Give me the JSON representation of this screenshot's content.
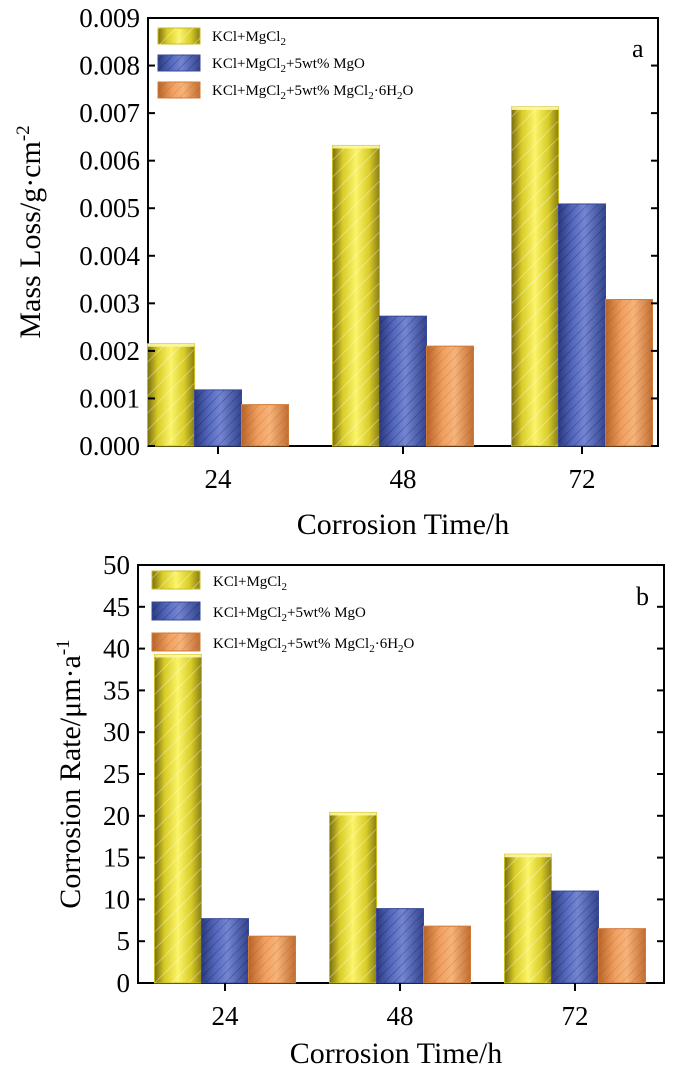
{
  "chart_data": [
    {
      "type": "bar",
      "panel_label": "a",
      "categories": [
        "24",
        "48",
        "72"
      ],
      "series": [
        {
          "name": "KCl+MgCl2",
          "values": [
            0.00215,
            0.00632,
            0.00713
          ],
          "color": "#e6da2e"
        },
        {
          "name": "KCl+MgCl2+5wt% MgO",
          "values": [
            0.00118,
            0.00273,
            0.00509
          ],
          "color": "#5b6fc0"
        },
        {
          "name": "KCl+MgCl2+5wt% MgCl2·6H2O",
          "values": [
            0.00087,
            0.0021,
            0.00308
          ],
          "color": "#f0a060"
        }
      ],
      "legend": {
        "placement": "top-left",
        "entries": [
          {
            "base": "KCl+MgCl",
            "sub": "2",
            "rest": ""
          },
          {
            "base": "KCl+MgCl",
            "sub": "2",
            "rest": "+5wt% MgO"
          },
          {
            "base": "KCl+MgCl",
            "sub": "2",
            "rest": "+5wt% MgCl",
            "sub2": "2",
            "rest2": "·6H",
            "sub3": "2",
            "rest3": "O"
          }
        ]
      },
      "xlabel": "Corrosion Time/h",
      "ylabel": "Mass Loss/g·cm",
      "ylabel_sup": "-2",
      "ylim": [
        0,
        0.009
      ],
      "yticks": [
        "0.000",
        "0.001",
        "0.002",
        "0.003",
        "0.004",
        "0.005",
        "0.006",
        "0.007",
        "0.008",
        "0.009"
      ],
      "grid": false
    },
    {
      "type": "bar",
      "panel_label": "b",
      "categories": [
        "24",
        "48",
        "72"
      ],
      "series": [
        {
          "name": "KCl+MgCl2",
          "values": [
            39.3,
            20.4,
            15.4
          ],
          "color": "#e6da2e"
        },
        {
          "name": "KCl+MgCl2+5wt% MgO",
          "values": [
            7.7,
            8.9,
            11.0
          ],
          "color": "#5b6fc0"
        },
        {
          "name": "KCl+MgCl2+5wt% MgCl2·6H2O",
          "values": [
            5.6,
            6.8,
            6.5
          ],
          "color": "#f0a060"
        }
      ],
      "legend": {
        "placement": "top-left",
        "entries": [
          {
            "base": "KCl+MgCl",
            "sub": "2",
            "rest": ""
          },
          {
            "base": "KCl+MgCl",
            "sub": "2",
            "rest": "+5wt% MgO"
          },
          {
            "base": "KCl+MgCl",
            "sub": "2",
            "rest": "+5wt% MgCl",
            "sub2": "2",
            "rest2": "·6H",
            "sub3": "2",
            "rest3": "O"
          }
        ]
      },
      "xlabel": "Corrosion Time/h",
      "ylabel": "Corrosion Rate/μm·a",
      "ylabel_sup": "-1",
      "ylim": [
        0,
        50
      ],
      "yticks": [
        "0",
        "5",
        "10",
        "15",
        "20",
        "25",
        "30",
        "35",
        "40",
        "45",
        "50"
      ],
      "grid": false
    }
  ]
}
